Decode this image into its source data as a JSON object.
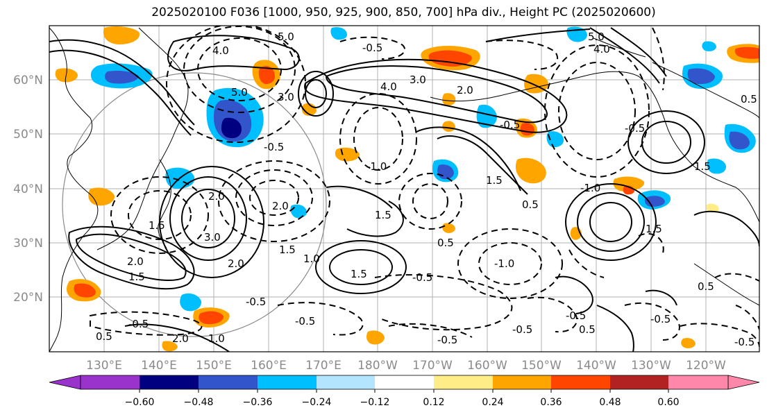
{
  "title": "2025020100 F036 [1000, 950, 925, 900, 850, 700] hPa div., Height PC (2025020600)",
  "lat_labels": [
    "60°N",
    "50°N",
    "40°N",
    "30°N",
    "20°N"
  ],
  "lon_labels": [
    "130°E",
    "140°E",
    "150°E",
    "160°E",
    "170°E",
    "180°W",
    "170°W",
    "160°W",
    "150°W",
    "140°W",
    "130°W",
    "120°W"
  ],
  "colorbar": {
    "ticks": [
      "−0.60",
      "−0.48",
      "−0.36",
      "−0.24",
      "−0.12",
      "0.12",
      "0.24",
      "0.36",
      "0.48",
      "0.60"
    ],
    "colors": [
      "#9933cc",
      "#000080",
      "#3355cc",
      "#00bfff",
      "#b3e5ff",
      "#ffffff",
      "#ffee88",
      "#ffa500",
      "#ff4500",
      "#b22222",
      "#ff88aa"
    ]
  },
  "contour_labels": {
    "l1": "5.0",
    "l2": "4.0",
    "l3": "3.0",
    "l4": "2.0",
    "l5": "-0.5",
    "l6": "-1.0",
    "l7": "0.5",
    "l8": "1.5",
    "l9": "3.0",
    "l10": "1.0",
    "l11": "-0.5",
    "l12": "-0.5",
    "l13": "0.5",
    "l14": "-1.0",
    "l15": "5.0",
    "l16": "4.0",
    "l17": "2.0",
    "l18": "-0.5",
    "l19": "0.5",
    "l20": "-0.5",
    "l21": "1.5"
  }
}
